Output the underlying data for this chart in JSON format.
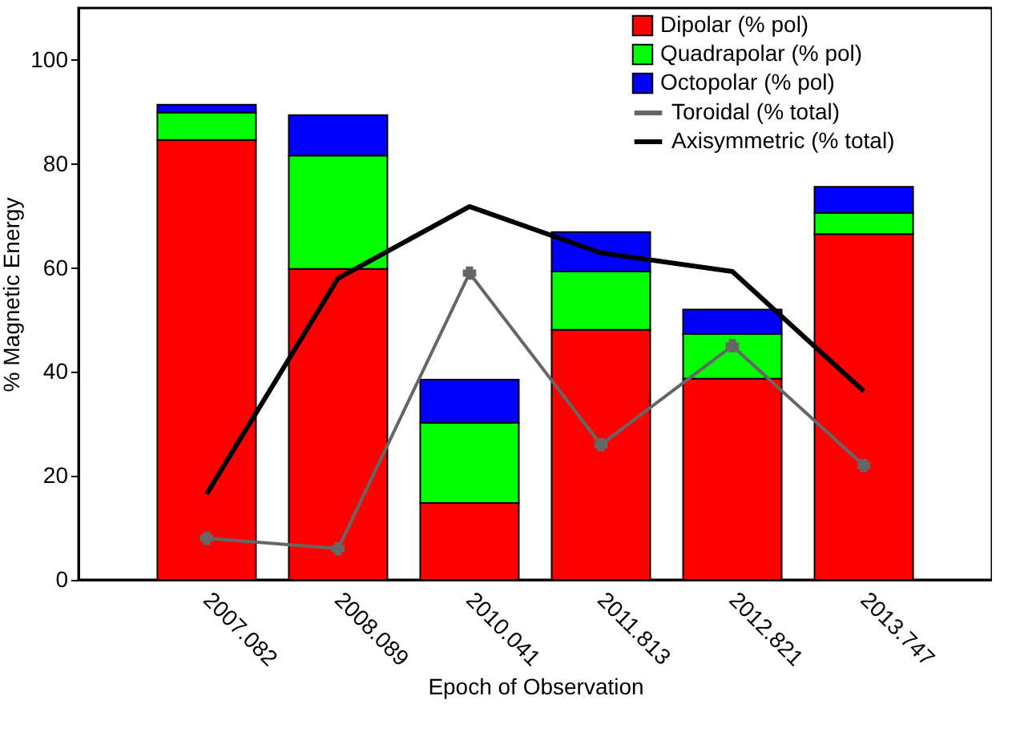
{
  "chart_data": {
    "type": "bar",
    "stacked": true,
    "xlabel": "Epoch of Observation",
    "ylabel": "% Magnetic Energy",
    "categories": [
      "2007.082",
      "2008.089",
      "2010.041",
      "2011.813",
      "2012.821",
      "2013.747"
    ],
    "series": [
      {
        "name": "Dipolar (% pol)",
        "color": "#ff0000",
        "values": [
          84.6,
          59.8,
          14.8,
          48.1,
          38.7,
          66.5
        ]
      },
      {
        "name": "Quadrapolar (% pol)",
        "color": "#00ff00",
        "values": [
          5.3,
          21.8,
          15.4,
          11.2,
          8.6,
          4.1
        ]
      },
      {
        "name": "Octopolar (% pol)",
        "color": "#0000ff",
        "values": [
          1.5,
          7.8,
          8.3,
          7.6,
          4.7,
          5.0
        ]
      },
      {
        "name": "Toroidal (% total)",
        "type": "line",
        "color": "#666666",
        "marker": "cross",
        "values": [
          8,
          6,
          59,
          26,
          45,
          22
        ]
      },
      {
        "name": "Axisymmetric (% total)",
        "type": "line",
        "color": "#000000",
        "marker": "none",
        "values": [
          16.5,
          58,
          71.8,
          62.9,
          59.3,
          36.3
        ]
      }
    ],
    "ylim": [
      0,
      110
    ],
    "yticks": [
      0,
      20,
      40,
      60,
      80,
      100
    ],
    "grid": false,
    "legend": "top right"
  }
}
